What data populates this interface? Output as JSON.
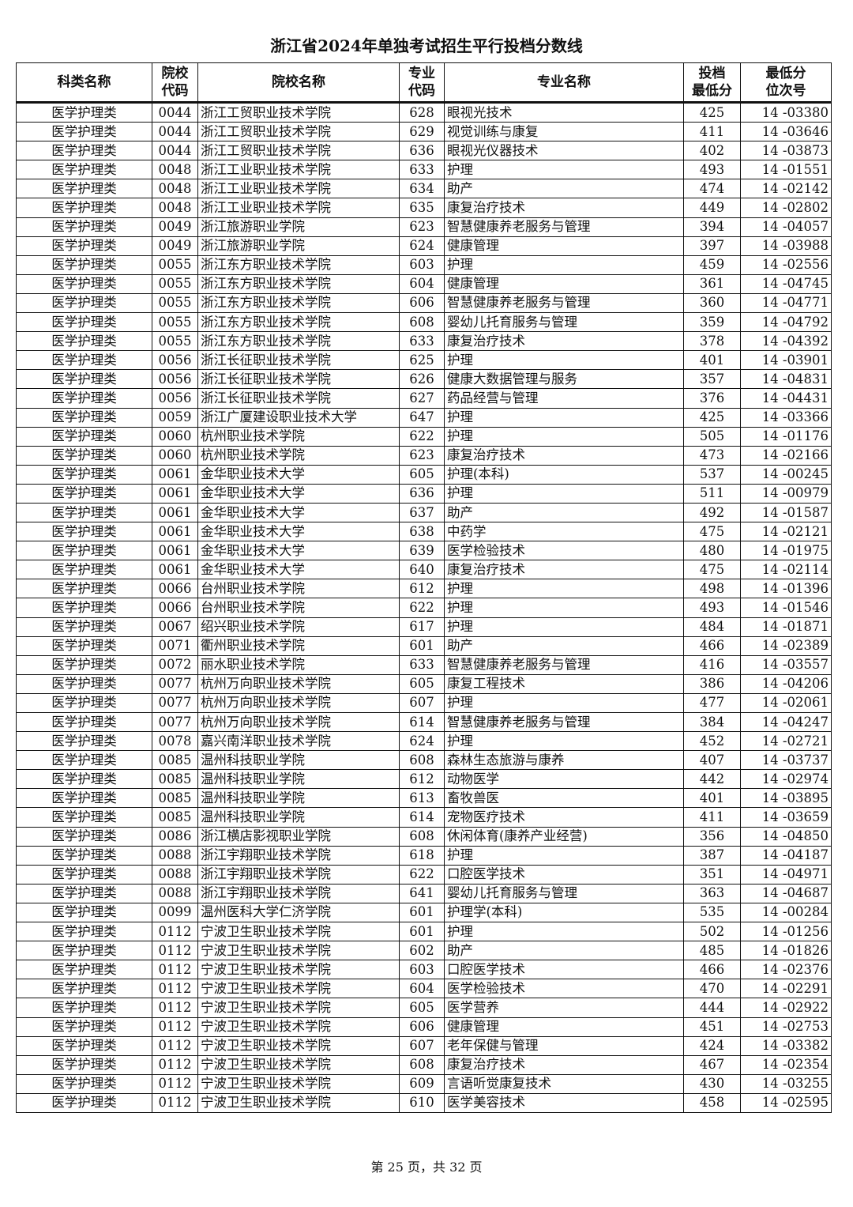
{
  "title": "浙江省2024年单独考试招生平行投档分数线",
  "columns": [
    "科类名称",
    "院校\n代码",
    "院校名称",
    "专业\n代码",
    "专业名称",
    "投档\n最低分",
    "最低分\n位次号"
  ],
  "rows": [
    [
      "医学护理类",
      "0044",
      "浙江工贸职业技术学院",
      "628",
      "眼视光技术",
      "425",
      "14 -03380"
    ],
    [
      "医学护理类",
      "0044",
      "浙江工贸职业技术学院",
      "629",
      "视觉训练与康复",
      "411",
      "14 -03646"
    ],
    [
      "医学护理类",
      "0044",
      "浙江工贸职业技术学院",
      "636",
      "眼视光仪器技术",
      "402",
      "14 -03873"
    ],
    [
      "医学护理类",
      "0048",
      "浙江工业职业技术学院",
      "633",
      "护理",
      "493",
      "14 -01551"
    ],
    [
      "医学护理类",
      "0048",
      "浙江工业职业技术学院",
      "634",
      "助产",
      "474",
      "14 -02142"
    ],
    [
      "医学护理类",
      "0048",
      "浙江工业职业技术学院",
      "635",
      "康复治疗技术",
      "449",
      "14 -02802"
    ],
    [
      "医学护理类",
      "0049",
      "浙江旅游职业学院",
      "623",
      "智慧健康养老服务与管理",
      "394",
      "14 -04057"
    ],
    [
      "医学护理类",
      "0049",
      "浙江旅游职业学院",
      "624",
      "健康管理",
      "397",
      "14 -03988"
    ],
    [
      "医学护理类",
      "0055",
      "浙江东方职业技术学院",
      "603",
      "护理",
      "459",
      "14 -02556"
    ],
    [
      "医学护理类",
      "0055",
      "浙江东方职业技术学院",
      "604",
      "健康管理",
      "361",
      "14 -04745"
    ],
    [
      "医学护理类",
      "0055",
      "浙江东方职业技术学院",
      "606",
      "智慧健康养老服务与管理",
      "360",
      "14 -04771"
    ],
    [
      "医学护理类",
      "0055",
      "浙江东方职业技术学院",
      "608",
      "婴幼儿托育服务与管理",
      "359",
      "14 -04792"
    ],
    [
      "医学护理类",
      "0055",
      "浙江东方职业技术学院",
      "633",
      "康复治疗技术",
      "378",
      "14 -04392"
    ],
    [
      "医学护理类",
      "0056",
      "浙江长征职业技术学院",
      "625",
      "护理",
      "401",
      "14 -03901"
    ],
    [
      "医学护理类",
      "0056",
      "浙江长征职业技术学院",
      "626",
      "健康大数据管理与服务",
      "357",
      "14 -04831"
    ],
    [
      "医学护理类",
      "0056",
      "浙江长征职业技术学院",
      "627",
      "药品经营与管理",
      "376",
      "14 -04431"
    ],
    [
      "医学护理类",
      "0059",
      "浙江广厦建设职业技术大学",
      "647",
      "护理",
      "425",
      "14 -03366"
    ],
    [
      "医学护理类",
      "0060",
      "杭州职业技术学院",
      "622",
      "护理",
      "505",
      "14 -01176"
    ],
    [
      "医学护理类",
      "0060",
      "杭州职业技术学院",
      "623",
      "康复治疗技术",
      "473",
      "14 -02166"
    ],
    [
      "医学护理类",
      "0061",
      "金华职业技术大学",
      "605",
      "护理(本科)",
      "537",
      "14 -00245"
    ],
    [
      "医学护理类",
      "0061",
      "金华职业技术大学",
      "636",
      "护理",
      "511",
      "14 -00979"
    ],
    [
      "医学护理类",
      "0061",
      "金华职业技术大学",
      "637",
      "助产",
      "492",
      "14 -01587"
    ],
    [
      "医学护理类",
      "0061",
      "金华职业技术大学",
      "638",
      "中药学",
      "475",
      "14 -02121"
    ],
    [
      "医学护理类",
      "0061",
      "金华职业技术大学",
      "639",
      "医学检验技术",
      "480",
      "14 -01975"
    ],
    [
      "医学护理类",
      "0061",
      "金华职业技术大学",
      "640",
      "康复治疗技术",
      "475",
      "14 -02114"
    ],
    [
      "医学护理类",
      "0066",
      "台州职业技术学院",
      "612",
      "护理",
      "498",
      "14 -01396"
    ],
    [
      "医学护理类",
      "0066",
      "台州职业技术学院",
      "622",
      "护理",
      "493",
      "14 -01546"
    ],
    [
      "医学护理类",
      "0067",
      "绍兴职业技术学院",
      "617",
      "护理",
      "484",
      "14 -01871"
    ],
    [
      "医学护理类",
      "0071",
      "衢州职业技术学院",
      "601",
      "助产",
      "466",
      "14 -02389"
    ],
    [
      "医学护理类",
      "0072",
      "丽水职业技术学院",
      "633",
      "智慧健康养老服务与管理",
      "416",
      "14 -03557"
    ],
    [
      "医学护理类",
      "0077",
      "杭州万向职业技术学院",
      "605",
      "康复工程技术",
      "386",
      "14 -04206"
    ],
    [
      "医学护理类",
      "0077",
      "杭州万向职业技术学院",
      "607",
      "护理",
      "477",
      "14 -02061"
    ],
    [
      "医学护理类",
      "0077",
      "杭州万向职业技术学院",
      "614",
      "智慧健康养老服务与管理",
      "384",
      "14 -04247"
    ],
    [
      "医学护理类",
      "0078",
      "嘉兴南洋职业技术学院",
      "624",
      "护理",
      "452",
      "14 -02721"
    ],
    [
      "医学护理类",
      "0085",
      "温州科技职业学院",
      "608",
      "森林生态旅游与康养",
      "407",
      "14 -03737"
    ],
    [
      "医学护理类",
      "0085",
      "温州科技职业学院",
      "612",
      "动物医学",
      "442",
      "14 -02974"
    ],
    [
      "医学护理类",
      "0085",
      "温州科技职业学院",
      "613",
      "畜牧兽医",
      "401",
      "14 -03895"
    ],
    [
      "医学护理类",
      "0085",
      "温州科技职业学院",
      "614",
      "宠物医疗技术",
      "411",
      "14 -03659"
    ],
    [
      "医学护理类",
      "0086",
      "浙江横店影视职业学院",
      "608",
      "休闲体育(康养产业经营)",
      "356",
      "14 -04850"
    ],
    [
      "医学护理类",
      "0088",
      "浙江宇翔职业技术学院",
      "618",
      "护理",
      "387",
      "14 -04187"
    ],
    [
      "医学护理类",
      "0088",
      "浙江宇翔职业技术学院",
      "622",
      "口腔医学技术",
      "351",
      "14 -04971"
    ],
    [
      "医学护理类",
      "0088",
      "浙江宇翔职业技术学院",
      "641",
      "婴幼儿托育服务与管理",
      "363",
      "14 -04687"
    ],
    [
      "医学护理类",
      "0099",
      "温州医科大学仁济学院",
      "601",
      "护理学(本科)",
      "535",
      "14 -00284"
    ],
    [
      "医学护理类",
      "0112",
      "宁波卫生职业技术学院",
      "601",
      "护理",
      "502",
      "14 -01256"
    ],
    [
      "医学护理类",
      "0112",
      "宁波卫生职业技术学院",
      "602",
      "助产",
      "485",
      "14 -01826"
    ],
    [
      "医学护理类",
      "0112",
      "宁波卫生职业技术学院",
      "603",
      "口腔医学技术",
      "466",
      "14 -02376"
    ],
    [
      "医学护理类",
      "0112",
      "宁波卫生职业技术学院",
      "604",
      "医学检验技术",
      "470",
      "14 -02291"
    ],
    [
      "医学护理类",
      "0112",
      "宁波卫生职业技术学院",
      "605",
      "医学营养",
      "444",
      "14 -02922"
    ],
    [
      "医学护理类",
      "0112",
      "宁波卫生职业技术学院",
      "606",
      "健康管理",
      "451",
      "14 -02753"
    ],
    [
      "医学护理类",
      "0112",
      "宁波卫生职业技术学院",
      "607",
      "老年保健与管理",
      "424",
      "14 -03382"
    ],
    [
      "医学护理类",
      "0112",
      "宁波卫生职业技术学院",
      "608",
      "康复治疗技术",
      "467",
      "14 -02354"
    ],
    [
      "医学护理类",
      "0112",
      "宁波卫生职业技术学院",
      "609",
      "言语听觉康复技术",
      "430",
      "14 -03255"
    ],
    [
      "医学护理类",
      "0112",
      "宁波卫生职业技术学院",
      "610",
      "医学美容技术",
      "458",
      "14 -02595"
    ]
  ],
  "footer": "第 25 页，共 32 页"
}
